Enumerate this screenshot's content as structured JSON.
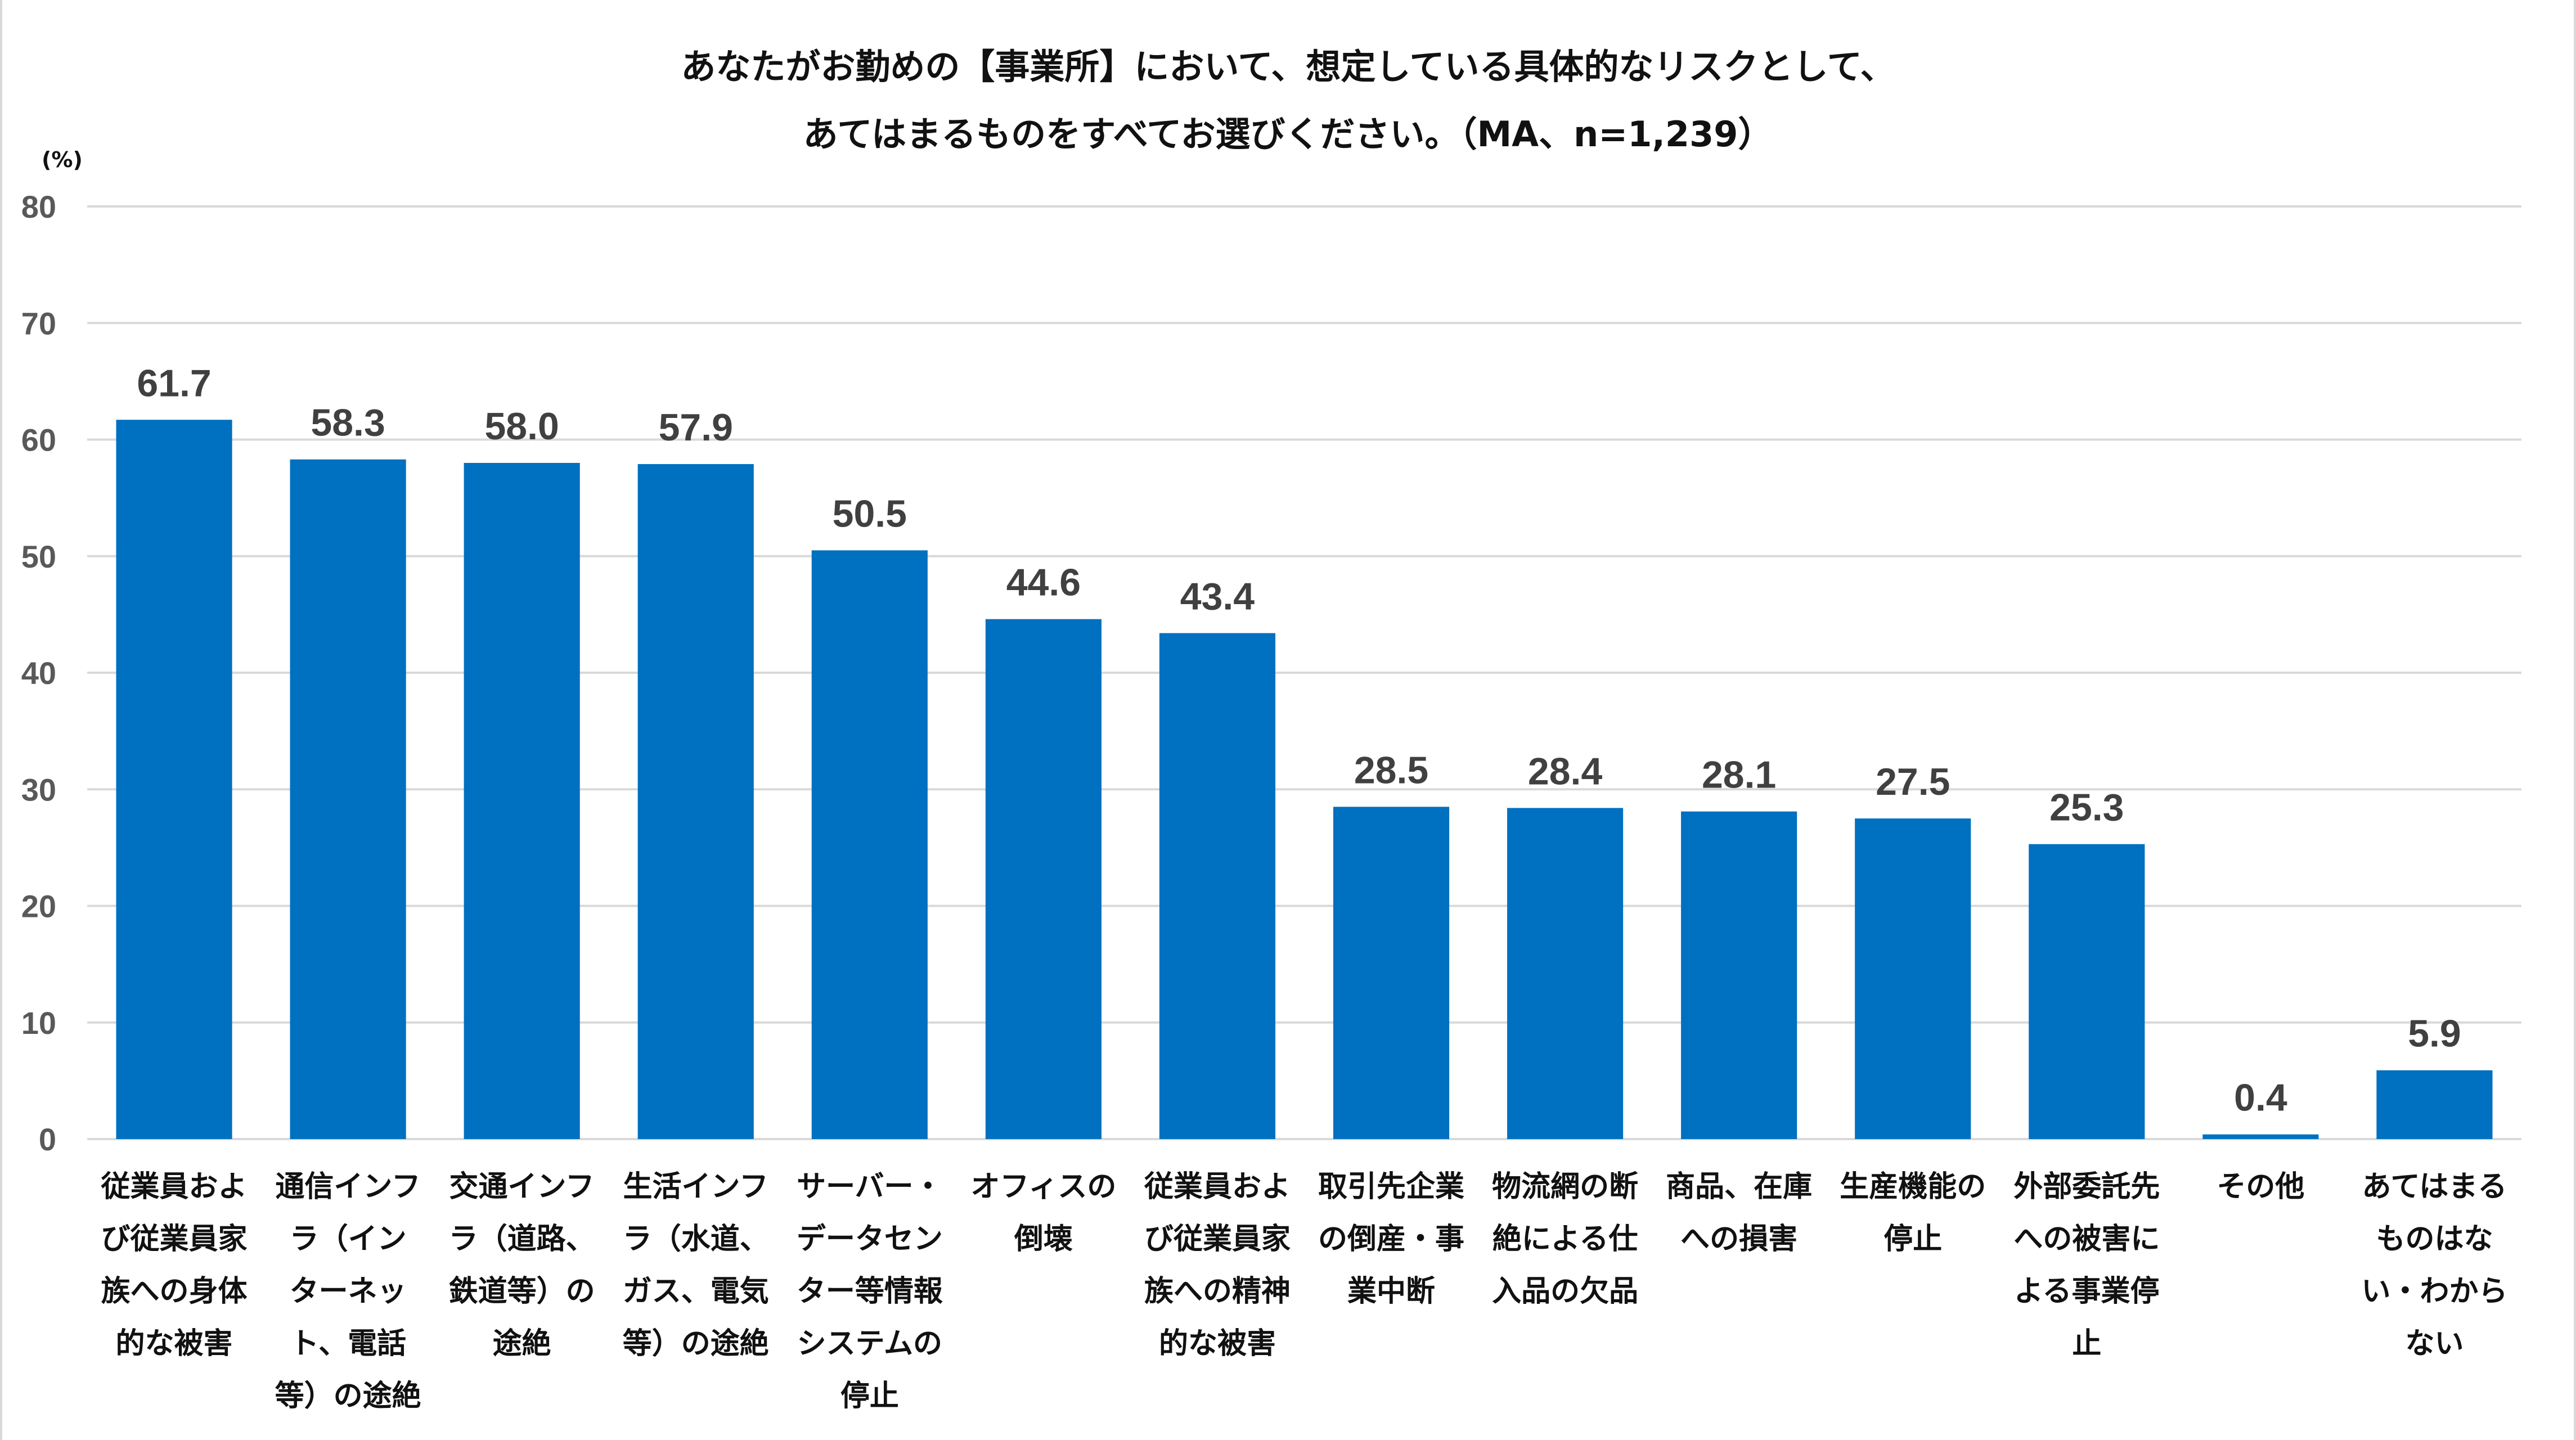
{
  "chart_data": {
    "type": "bar",
    "title": "あなたがお勤めの【事業所】において、想定している具体的なリスクとして、あてはまるものをすべてお選びください。（MA、n=1,239）",
    "title_lines": [
      "あなたがお勤めの【事業所】において、想定している具体的なリスクとして、",
      "あてはまるものをすべてお選びください。（MA、n=1,239）"
    ],
    "ylabel": "(%)",
    "xlabel": "",
    "ylim": [
      0,
      80
    ],
    "yticks": [
      0,
      10,
      20,
      30,
      40,
      50,
      60,
      70,
      80
    ],
    "grid": true,
    "legend": "none",
    "bar_color": "#0070C0",
    "categories": [
      "従業員および従業員家族への身体的な被害",
      "通信インフラ（インターネット、電話等）の途絶",
      "交通インフラ（道路、鉄道等）の途絶",
      "生活インフラ（水道、ガス、電気等）の途絶",
      "サーバー・データセンター等情報システムの停止",
      "オフィスの倒壊",
      "従業員および従業員家族への精神的な被害",
      "取引先企業の倒産・事業中断",
      "物流網の断絶による仕入品の欠品",
      "商品、在庫への損害",
      "生産機能の停止",
      "外部委託先への被害による事業停止",
      "その他",
      "あてはまるものはない・わからない"
    ],
    "category_lines": [
      [
        "従業員およ",
        "び従業員家",
        "族への身体",
        "的な被害"
      ],
      [
        "通信インフ",
        "ラ（イン",
        "ターネッ",
        "ト、電話",
        "等）の途絶"
      ],
      [
        "交通インフ",
        "ラ（道路、",
        "鉄道等）の",
        "途絶"
      ],
      [
        "生活インフ",
        "ラ（水道、",
        "ガス、電気",
        "等）の途絶"
      ],
      [
        "サーバー・",
        "データセン",
        "ター等情報",
        "システムの",
        "停止"
      ],
      [
        "オフィスの",
        "倒壊"
      ],
      [
        "従業員およ",
        "び従業員家",
        "族への精神",
        "的な被害"
      ],
      [
        "取引先企業",
        "の倒産・事",
        "業中断"
      ],
      [
        "物流網の断",
        "絶による仕",
        "入品の欠品"
      ],
      [
        "商品、在庫",
        "への損害"
      ],
      [
        "生産機能の",
        "停止"
      ],
      [
        "外部委託先",
        "への被害に",
        "よる事業停",
        "止"
      ],
      [
        "その他"
      ],
      [
        "あてはまる",
        "ものはな",
        "い・わから",
        "ない"
      ]
    ],
    "values": [
      61.7,
      58.3,
      58.0,
      57.9,
      50.5,
      44.6,
      43.4,
      28.5,
      28.4,
      28.1,
      27.5,
      25.3,
      0.4,
      5.9
    ],
    "value_labels": [
      "61.7",
      "58.3",
      "58.0",
      "57.9",
      "50.5",
      "44.6",
      "43.4",
      "28.5",
      "28.4",
      "28.1",
      "27.5",
      "25.3",
      "0.4",
      "5.9"
    ]
  }
}
